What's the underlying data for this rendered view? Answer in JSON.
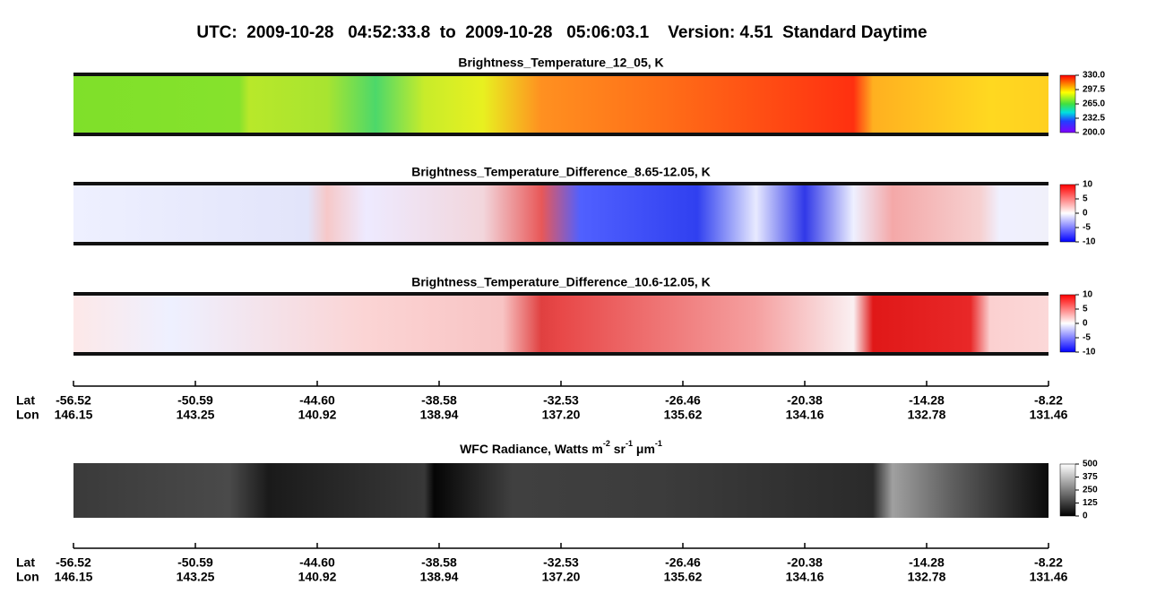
{
  "title": "UTC:  2009-10-28   04:52:33.8  to  2009-10-28   05:06:03.1    Version: 4.51  Standard Daytime",
  "chart_data": [
    {
      "type": "heatmap",
      "title": "Brightness_Temperature_12_05, K",
      "clim": [
        200,
        330
      ],
      "cticks": [
        {
          "value": 330,
          "label": "330.0"
        },
        {
          "value": 297.5,
          "label": "297.5"
        },
        {
          "value": 265,
          "label": "265.0"
        },
        {
          "value": 232.5,
          "label": "232.5"
        },
        {
          "value": 200,
          "label": "200.0"
        }
      ],
      "colormap": "rainbow"
    },
    {
      "type": "heatmap",
      "title": "Brightness_Temperature_Difference_8.65-12.05, K",
      "clim": [
        -10,
        10
      ],
      "cticks": [
        10,
        5,
        0,
        -5,
        -10
      ],
      "colormap": "bwr"
    },
    {
      "type": "heatmap",
      "title": "Brightness_Temperature_Difference_10.6-12.05, K",
      "clim": [
        -10,
        10
      ],
      "cticks": [
        10,
        5,
        0,
        -5,
        -10
      ],
      "colormap": "bwr"
    },
    {
      "type": "heatmap",
      "title": [
        "WFC Radiance, Watts m",
        "-2",
        " sr",
        "-1",
        " μm",
        "-1"
      ],
      "clim": [
        0,
        500
      ],
      "cticks": [
        500,
        375,
        250,
        125,
        0
      ],
      "colormap": "gray"
    }
  ],
  "axes": [
    {
      "lat_label": "Lat",
      "lon_label": "Lon",
      "lat": [
        "-56.52",
        "-50.59",
        "-44.60",
        "-38.58",
        "-32.53",
        "-26.46",
        "-20.38",
        "-14.28",
        "-8.22"
      ],
      "lon": [
        "146.15",
        "143.25",
        "140.92",
        "138.94",
        "137.20",
        "135.62",
        "134.16",
        "132.78",
        "131.46"
      ]
    },
    {
      "lat_label": "Lat",
      "lon_label": "Lon",
      "lat": [
        "-56.52",
        "-50.59",
        "-44.60",
        "-38.58",
        "-32.53",
        "-26.46",
        "-20.38",
        "-14.28",
        "-8.22"
      ],
      "lon": [
        "146.15",
        "143.25",
        "140.92",
        "138.94",
        "137.20",
        "135.62",
        "134.16",
        "132.78",
        "131.46"
      ]
    }
  ]
}
